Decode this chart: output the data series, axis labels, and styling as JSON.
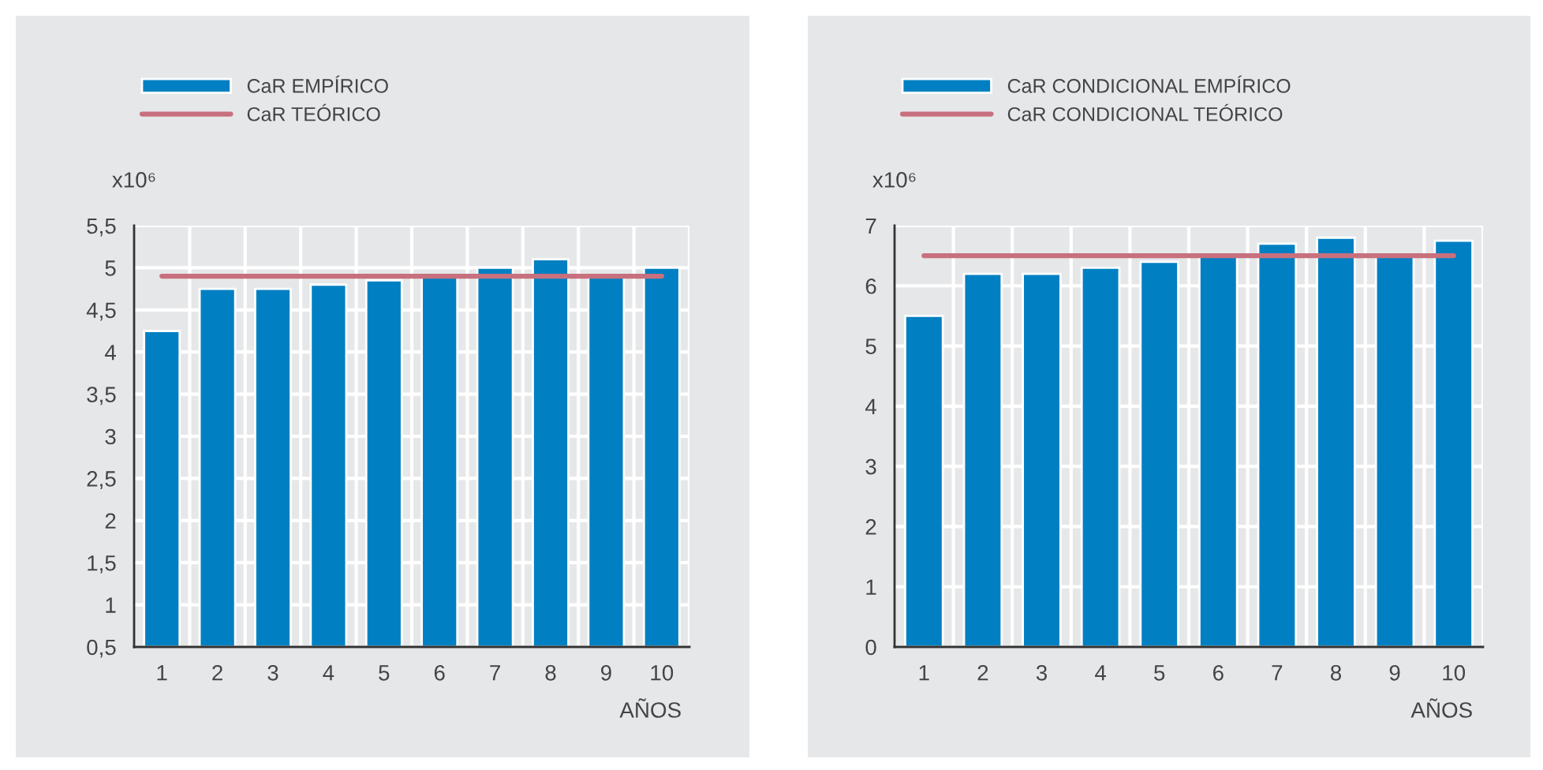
{
  "chart_data": [
    {
      "type": "bar",
      "ylabel": "x10⁶",
      "xlabel": "AÑOS",
      "categories": [
        "1",
        "2",
        "3",
        "4",
        "5",
        "6",
        "7",
        "8",
        "9",
        "10"
      ],
      "series": [
        {
          "name": "CaR EMPÍRICO",
          "color": "#0080c2",
          "values": [
            4.25,
            4.75,
            4.75,
            4.8,
            4.85,
            4.9,
            5.0,
            5.1,
            4.9,
            5.0
          ]
        },
        {
          "name": "CaR TEÓRICO",
          "type": "line",
          "color": "#c8707e",
          "values": [
            4.9,
            4.9,
            4.9,
            4.9,
            4.9,
            4.9,
            4.9,
            4.9,
            4.9,
            4.9
          ]
        }
      ],
      "ylim": [
        0.5,
        5.5
      ],
      "yticks": [
        {
          "value": 0.5,
          "label": "0,5"
        },
        1,
        {
          "value": 1.5,
          "label": "1,5"
        },
        2,
        {
          "value": 2.5,
          "label": "2,5"
        },
        3,
        {
          "value": 3.5,
          "label": "3,5"
        },
        4,
        {
          "value": 4.5,
          "label": "4,5"
        },
        5,
        {
          "value": 5.5,
          "label": "5,5"
        }
      ],
      "grid": true,
      "legend": "top left",
      "marker": "none",
      "line_style": "solid"
    },
    {
      "type": "bar",
      "ylabel": "x10⁶",
      "xlabel": "AÑOS",
      "categories": [
        "1",
        "2",
        "3",
        "4",
        "5",
        "6",
        "7",
        "8",
        "9",
        "10"
      ],
      "series": [
        {
          "name": "CaR CONDICIONAL EMPÍRICO",
          "color": "#0080c2",
          "values": [
            5.5,
            6.2,
            6.2,
            6.3,
            6.4,
            6.5,
            6.7,
            6.8,
            6.5,
            6.75
          ]
        },
        {
          "name": "CaR CONDICIONAL TEÓRICO",
          "type": "line",
          "color": "#c8707e",
          "values": [
            6.5,
            6.5,
            6.5,
            6.5,
            6.5,
            6.5,
            6.5,
            6.5,
            6.5,
            6.5
          ]
        }
      ],
      "ylim": [
        0,
        7
      ],
      "yticks": [
        0,
        1,
        2,
        3,
        4,
        5,
        6,
        7
      ],
      "grid": true,
      "legend": "top left",
      "marker": "none",
      "line_style": "solid"
    }
  ]
}
